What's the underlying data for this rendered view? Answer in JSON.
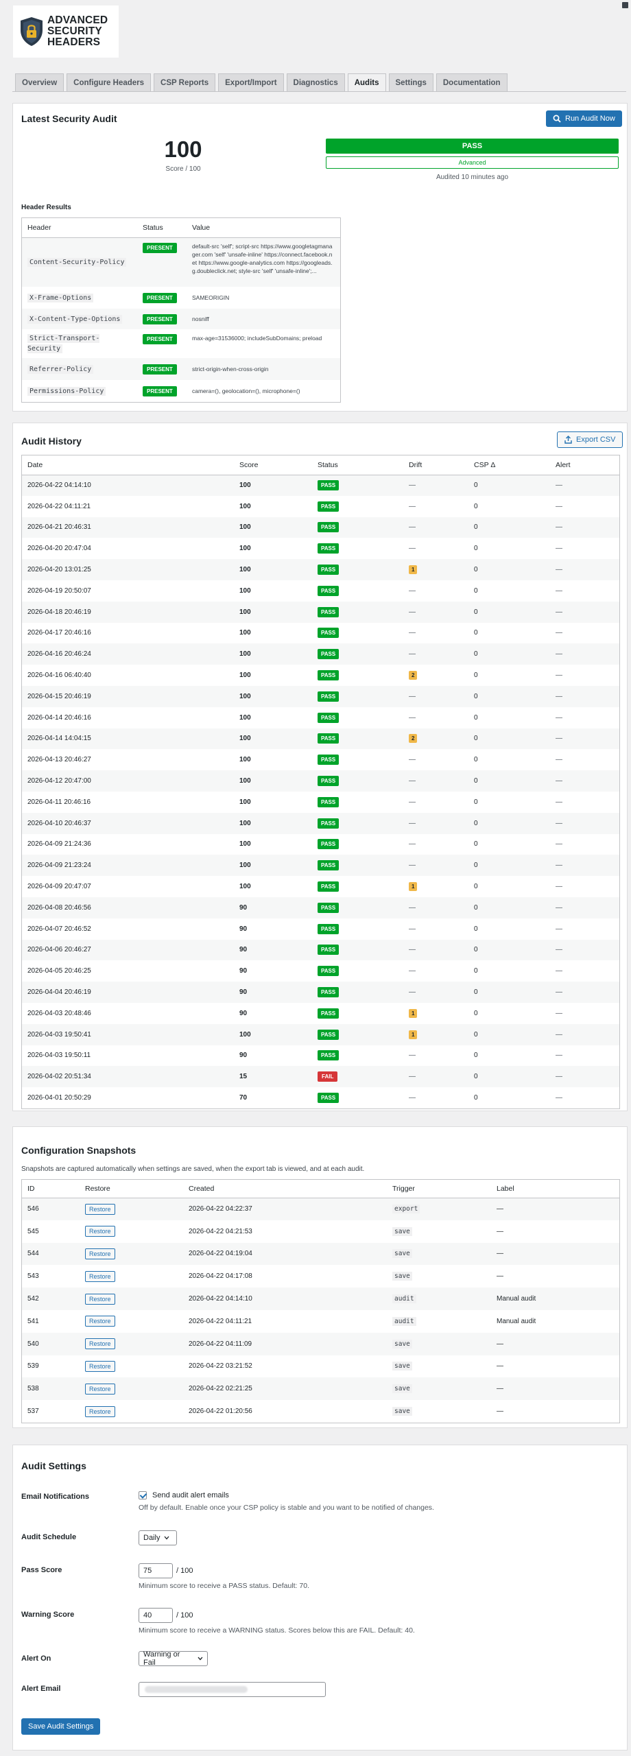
{
  "logo": {
    "line1": "ADVANCED",
    "line2": "SECURITY",
    "line3": "HEADERS"
  },
  "tabs": [
    {
      "label": "Overview",
      "active": false
    },
    {
      "label": "Configure Headers",
      "active": false
    },
    {
      "label": "CSP Reports",
      "active": false
    },
    {
      "label": "Export/Import",
      "active": false
    },
    {
      "label": "Diagnostics",
      "active": false
    },
    {
      "label": "Audits",
      "active": true
    },
    {
      "label": "Settings",
      "active": false
    },
    {
      "label": "Documentation",
      "active": false
    }
  ],
  "latest": {
    "title": "Latest Security Audit",
    "run_button": "Run Audit Now",
    "score": "100",
    "score_sub": "Score / 100",
    "status": "PASS",
    "level": "Advanced",
    "audited": "Audited 10 minutes ago",
    "results_label": "Header Results",
    "columns": {
      "header": "Header",
      "status": "Status",
      "value": "Value"
    },
    "rows": [
      {
        "header": "Content-Security-Policy",
        "status": "PRESENT",
        "value": "default-src 'self'; script-src https://www.googletagmanager.com 'self' 'unsafe-inline' https://connect.facebook.net https://www.google-analytics.com https://googleads.g.doubleclick.net; style-src 'self' 'unsafe-inline';..."
      },
      {
        "header": "X-Frame-Options",
        "status": "PRESENT",
        "value": "SAMEORIGIN"
      },
      {
        "header": "X-Content-Type-Options",
        "status": "PRESENT",
        "value": "nosniff"
      },
      {
        "header": "Strict-Transport-Security",
        "status": "PRESENT",
        "value": "max-age=31536000; includeSubDomains; preload"
      },
      {
        "header": "Referrer-Policy",
        "status": "PRESENT",
        "value": "strict-origin-when-cross-origin"
      },
      {
        "header": "Permissions-Policy",
        "status": "PRESENT",
        "value": "camera=(), geolocation=(), microphone=()"
      }
    ]
  },
  "history": {
    "title": "Audit History",
    "export_button": "Export CSV",
    "columns": {
      "date": "Date",
      "score": "Score",
      "status": "Status",
      "drift": "Drift",
      "csp": "CSP Δ",
      "alert": "Alert"
    },
    "rows": [
      {
        "date": "2026-04-22 04:14:10",
        "score": "100",
        "status": "PASS",
        "drift": "—",
        "csp": "0",
        "alert": "—"
      },
      {
        "date": "2026-04-22 04:11:21",
        "score": "100",
        "status": "PASS",
        "drift": "—",
        "csp": "0",
        "alert": "—"
      },
      {
        "date": "2026-04-21 20:46:31",
        "score": "100",
        "status": "PASS",
        "drift": "—",
        "csp": "0",
        "alert": "—"
      },
      {
        "date": "2026-04-20 20:47:04",
        "score": "100",
        "status": "PASS",
        "drift": "—",
        "csp": "0",
        "alert": "—"
      },
      {
        "date": "2026-04-20 13:01:25",
        "score": "100",
        "status": "PASS",
        "drift": "1",
        "csp": "0",
        "alert": "—"
      },
      {
        "date": "2026-04-19 20:50:07",
        "score": "100",
        "status": "PASS",
        "drift": "—",
        "csp": "0",
        "alert": "—"
      },
      {
        "date": "2026-04-18 20:46:19",
        "score": "100",
        "status": "PASS",
        "drift": "—",
        "csp": "0",
        "alert": "—"
      },
      {
        "date": "2026-04-17 20:46:16",
        "score": "100",
        "status": "PASS",
        "drift": "—",
        "csp": "0",
        "alert": "—"
      },
      {
        "date": "2026-04-16 20:46:24",
        "score": "100",
        "status": "PASS",
        "drift": "—",
        "csp": "0",
        "alert": "—"
      },
      {
        "date": "2026-04-16 06:40:40",
        "score": "100",
        "status": "PASS",
        "drift": "2",
        "csp": "0",
        "alert": "—"
      },
      {
        "date": "2026-04-15 20:46:19",
        "score": "100",
        "status": "PASS",
        "drift": "—",
        "csp": "0",
        "alert": "—"
      },
      {
        "date": "2026-04-14 20:46:16",
        "score": "100",
        "status": "PASS",
        "drift": "—",
        "csp": "0",
        "alert": "—"
      },
      {
        "date": "2026-04-14 14:04:15",
        "score": "100",
        "status": "PASS",
        "drift": "2",
        "csp": "0",
        "alert": "—"
      },
      {
        "date": "2026-04-13 20:46:27",
        "score": "100",
        "status": "PASS",
        "drift": "—",
        "csp": "0",
        "alert": "—"
      },
      {
        "date": "2026-04-12 20:47:00",
        "score": "100",
        "status": "PASS",
        "drift": "—",
        "csp": "0",
        "alert": "—"
      },
      {
        "date": "2026-04-11 20:46:16",
        "score": "100",
        "status": "PASS",
        "drift": "—",
        "csp": "0",
        "alert": "—"
      },
      {
        "date": "2026-04-10 20:46:37",
        "score": "100",
        "status": "PASS",
        "drift": "—",
        "csp": "0",
        "alert": "—"
      },
      {
        "date": "2026-04-09 21:24:36",
        "score": "100",
        "status": "PASS",
        "drift": "—",
        "csp": "0",
        "alert": "—"
      },
      {
        "date": "2026-04-09 21:23:24",
        "score": "100",
        "status": "PASS",
        "drift": "—",
        "csp": "0",
        "alert": "—"
      },
      {
        "date": "2026-04-09 20:47:07",
        "score": "100",
        "status": "PASS",
        "drift": "1",
        "csp": "0",
        "alert": "—"
      },
      {
        "date": "2026-04-08 20:46:56",
        "score": "90",
        "status": "PASS",
        "drift": "—",
        "csp": "0",
        "alert": "—"
      },
      {
        "date": "2026-04-07 20:46:52",
        "score": "90",
        "status": "PASS",
        "drift": "—",
        "csp": "0",
        "alert": "—"
      },
      {
        "date": "2026-04-06 20:46:27",
        "score": "90",
        "status": "PASS",
        "drift": "—",
        "csp": "0",
        "alert": "—"
      },
      {
        "date": "2026-04-05 20:46:25",
        "score": "90",
        "status": "PASS",
        "drift": "—",
        "csp": "0",
        "alert": "—"
      },
      {
        "date": "2026-04-04 20:46:19",
        "score": "90",
        "status": "PASS",
        "drift": "—",
        "csp": "0",
        "alert": "—"
      },
      {
        "date": "2026-04-03 20:48:46",
        "score": "90",
        "status": "PASS",
        "drift": "1",
        "csp": "0",
        "alert": "—"
      },
      {
        "date": "2026-04-03 19:50:41",
        "score": "100",
        "status": "PASS",
        "drift": "1",
        "csp": "0",
        "alert": "—"
      },
      {
        "date": "2026-04-03 19:50:11",
        "score": "90",
        "status": "PASS",
        "drift": "—",
        "csp": "0",
        "alert": "—"
      },
      {
        "date": "2026-04-02 20:51:34",
        "score": "15",
        "status": "FAIL",
        "drift": "—",
        "csp": "0",
        "alert": "—"
      },
      {
        "date": "2026-04-01 20:50:29",
        "score": "70",
        "status": "PASS",
        "drift": "—",
        "csp": "0",
        "alert": "—"
      }
    ]
  },
  "snapshots": {
    "title": "Configuration Snapshots",
    "description": "Snapshots are captured automatically when settings are saved, when the export tab is viewed, and at each audit.",
    "columns": {
      "id": "ID",
      "restore": "Restore",
      "created": "Created",
      "trigger": "Trigger",
      "label": "Label"
    },
    "restore_label": "Restore",
    "rows": [
      {
        "id": "546",
        "created": "2026-04-22 04:22:37",
        "trigger": "export",
        "label": "—"
      },
      {
        "id": "545",
        "created": "2026-04-22 04:21:53",
        "trigger": "save",
        "label": "—"
      },
      {
        "id": "544",
        "created": "2026-04-22 04:19:04",
        "trigger": "save",
        "label": "—"
      },
      {
        "id": "543",
        "created": "2026-04-22 04:17:08",
        "trigger": "save",
        "label": "—"
      },
      {
        "id": "542",
        "created": "2026-04-22 04:14:10",
        "trigger": "audit",
        "label": "Manual audit"
      },
      {
        "id": "541",
        "created": "2026-04-22 04:11:21",
        "trigger": "audit",
        "label": "Manual audit"
      },
      {
        "id": "540",
        "created": "2026-04-22 04:11:09",
        "trigger": "save",
        "label": "—"
      },
      {
        "id": "539",
        "created": "2026-04-22 03:21:52",
        "trigger": "save",
        "label": "—"
      },
      {
        "id": "538",
        "created": "2026-04-22 02:21:25",
        "trigger": "save",
        "label": "—"
      },
      {
        "id": "537",
        "created": "2026-04-22 01:20:56",
        "trigger": "save",
        "label": "—"
      }
    ]
  },
  "settings": {
    "title": "Audit Settings",
    "email_label": "Email Notifications",
    "email_checkbox": "Send audit alert emails",
    "email_checked": true,
    "email_help": "Off by default. Enable once your CSP policy is stable and you want to be notified of changes.",
    "schedule_label": "Audit Schedule",
    "schedule_value": "Daily",
    "pass_label": "Pass Score",
    "pass_value": "75",
    "pass_of": "/ 100",
    "pass_help": "Minimum score to receive a PASS status. Default: 70.",
    "warn_label": "Warning Score",
    "warn_value": "40",
    "warn_of": "/ 100",
    "warn_help": "Minimum score to receive a WARNING status. Scores below this are FAIL. Default: 40.",
    "alert_on_label": "Alert On",
    "alert_on_value": "Warning or Fail",
    "alert_email_label": "Alert Email",
    "save_button": "Save Audit Settings"
  },
  "icons": {
    "run_audit": "search-icon",
    "export": "export-icon",
    "select": "chevron-down-icon",
    "logo": "shield-lock-icon"
  },
  "colors": {
    "primary": "#2271b1",
    "pass": "#00a32a",
    "fail": "#d63638",
    "drift": "#f0b849"
  }
}
